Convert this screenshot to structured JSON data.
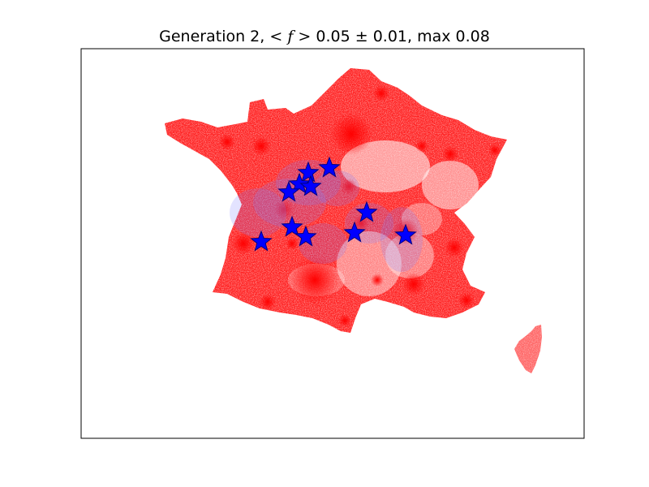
{
  "chart_data": {
    "type": "scatter",
    "title": {
      "prefix": "Generation 2,",
      "mean_symbol": "< f >",
      "mean_value": "0.05",
      "pm_symbol": "±",
      "std_value": "0.01",
      "max_label": "max",
      "max_value": "0.08"
    },
    "generation": 2,
    "mean_f": 0.05,
    "std_f": 0.01,
    "max_f": 0.08,
    "xlabel": "",
    "ylabel": "",
    "grid": false,
    "legend": "none",
    "background_points_color": "#ff0000",
    "highlight_halo_color": "#8080ff",
    "star_color": "#0000ff",
    "star_edge_color": "#000080",
    "star_count": 11
  }
}
